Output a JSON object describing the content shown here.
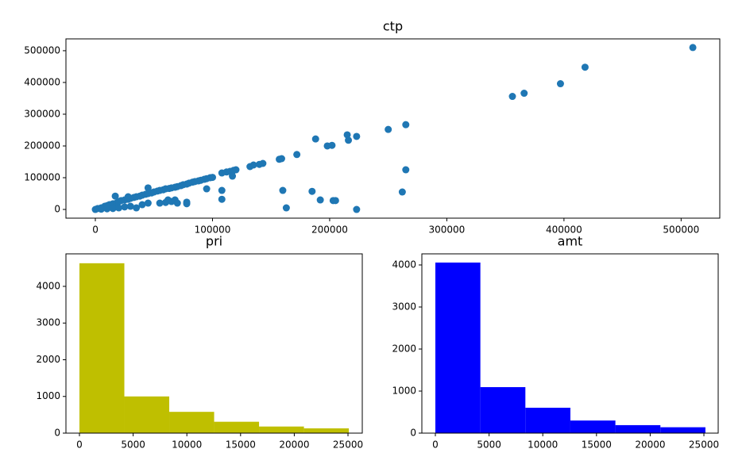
{
  "chart_data": [
    {
      "type": "scatter",
      "title": "ctp",
      "color": "#1f77b4",
      "x": [
        0,
        2000,
        5000,
        8000,
        10000,
        12000,
        15000,
        18000,
        20000,
        22000,
        25000,
        28000,
        30000,
        33000,
        35000,
        38000,
        40000,
        43000,
        45000,
        48000,
        50000,
        53000,
        55000,
        58000,
        60000,
        63000,
        65000,
        68000,
        70000,
        73000,
        75000,
        78000,
        80000,
        83000,
        85000,
        88000,
        90000,
        93000,
        95000,
        98000,
        100000,
        108000,
        112000,
        115000,
        118000,
        120000,
        117000,
        132000,
        135000,
        140000,
        143000,
        157000,
        159000,
        172000,
        188000,
        198000,
        202000,
        215000,
        216000,
        223000,
        250000,
        265000,
        356000,
        366000,
        397000,
        418000,
        510000,
        5000,
        10000,
        15000,
        20000,
        25000,
        30000,
        35000,
        40000,
        45000,
        17000,
        28000,
        45000,
        55000,
        60000,
        62000,
        65000,
        68000,
        70000,
        78000,
        78000,
        95000,
        108000,
        108000,
        160000,
        163000,
        185000,
        192000,
        203000,
        205000,
        223000,
        262000,
        265000
      ],
      "y": [
        0,
        3000,
        5000,
        10000,
        12000,
        15000,
        18000,
        20000,
        25000,
        28000,
        30000,
        32000,
        35000,
        38000,
        40000,
        42000,
        45000,
        48000,
        50000,
        52000,
        55000,
        58000,
        60000,
        62000,
        65000,
        66000,
        68000,
        70000,
        72000,
        75000,
        78000,
        80000,
        83000,
        86000,
        88000,
        90000,
        92000,
        95000,
        97000,
        100000,
        101000,
        115000,
        118000,
        120000,
        123000,
        125000,
        105000,
        135000,
        140000,
        142000,
        145000,
        158000,
        160000,
        173000,
        222000,
        200000,
        202000,
        235000,
        218000,
        230000,
        252000,
        267000,
        356000,
        366000,
        396000,
        448000,
        510000,
        1000,
        2000,
        3000,
        5000,
        8000,
        10000,
        5000,
        15000,
        20000,
        42000,
        40000,
        68000,
        20000,
        22000,
        30000,
        25000,
        30000,
        20000,
        18000,
        23000,
        65000,
        60000,
        32000,
        60000,
        5000,
        57000,
        30000,
        28000,
        28000,
        0,
        55000,
        125000
      ],
      "xlim": [
        -25100,
        533000
      ],
      "ylim": [
        -27400,
        537300
      ],
      "xticks": [
        0,
        100000,
        200000,
        300000,
        400000,
        500000
      ],
      "yticks": [
        0,
        100000,
        200000,
        300000,
        400000,
        500000
      ]
    },
    {
      "type": "histogram",
      "title": "pri",
      "color": "#bfbf00",
      "bins": [
        0,
        4180,
        8360,
        12540,
        16720,
        20900,
        25080
      ],
      "values": [
        4630,
        1000,
        580,
        310,
        180,
        130
      ],
      "xlim": [
        -1257,
        26330
      ],
      "ylim": [
        0,
        4886
      ],
      "xticks": [
        0,
        5000,
        10000,
        15000,
        20000,
        25000
      ],
      "yticks": [
        0,
        1000,
        2000,
        3000,
        4000
      ]
    },
    {
      "type": "histogram",
      "title": "amt",
      "color": "#0000ff",
      "bins": [
        0,
        4190,
        8380,
        12570,
        16760,
        20950,
        25140
      ],
      "values": [
        4057,
        1094,
        604,
        300,
        190,
        140
      ],
      "xlim": [
        -1257,
        26330
      ],
      "ylim": [
        0,
        4264
      ],
      "xticks": [
        0,
        5000,
        10000,
        15000,
        20000,
        25000
      ],
      "yticks": [
        0,
        1000,
        2000,
        3000,
        4000
      ]
    }
  ]
}
